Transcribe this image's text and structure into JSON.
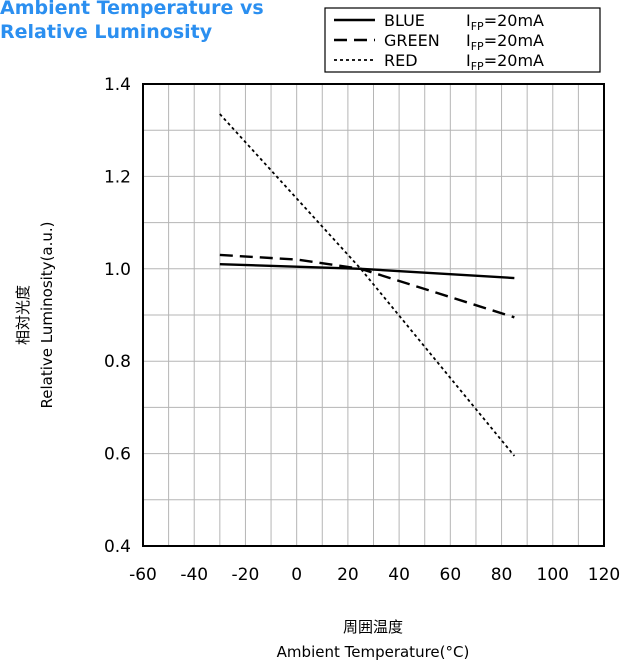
{
  "title": {
    "line1": "Ambient Temperature vs",
    "line2": "Relative Luminosity"
  },
  "chart_data": {
    "type": "line",
    "xlabel": {
      "jp": "周囲温度",
      "en": "Ambient Temperature(°C)"
    },
    "ylabel": {
      "jp": "相対光度",
      "en": "Relative Luminosity(a.u.)"
    },
    "xlim": [
      -60,
      120
    ],
    "ylim": [
      0.4,
      1.4
    ],
    "x_ticks": [
      "-60",
      "-40",
      "-20",
      "0",
      "20",
      "40",
      "60",
      "80",
      "100",
      "120"
    ],
    "y_ticks": [
      "0.4",
      "0.6",
      "0.8",
      "1.0",
      "1.2",
      "1.4"
    ],
    "grid": true,
    "legend_position": "top-right",
    "series": [
      {
        "name": "BLUE",
        "condition": "I_FP=20mA",
        "style": "solid",
        "x": [
          -30,
          25,
          85
        ],
        "y": [
          1.01,
          1.0,
          0.98
        ]
      },
      {
        "name": "GREEN",
        "condition": "I_FP=20mA",
        "style": "dashed",
        "x": [
          -30,
          0,
          25,
          85
        ],
        "y": [
          1.03,
          1.02,
          1.0,
          0.895
        ]
      },
      {
        "name": "RED",
        "condition": "I_FP=20mA",
        "style": "dotted",
        "x": [
          -30,
          25,
          85
        ],
        "y": [
          1.335,
          1.0,
          0.595
        ]
      }
    ]
  }
}
